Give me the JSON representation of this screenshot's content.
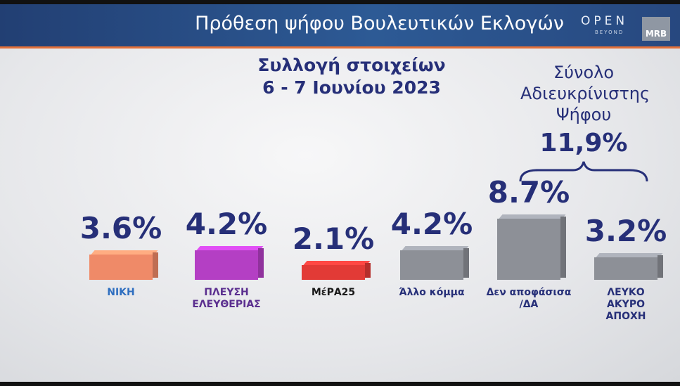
{
  "chart_data": {
    "type": "bar",
    "title": "Πρόθεση ψήφου Βουλευτικών Εκλογών",
    "subtitle": [
      "Συλλογή στοιχείων",
      "6 - 7 Ιουνίου 2023"
    ],
    "brand": [
      "OPEN",
      "BEYOND",
      "MRB"
    ],
    "annotation": {
      "text": "Σύνολο Αδιευκρίνιστης Ψήφου",
      "value": "11,9%"
    },
    "categories": [
      "ΝΙΚΗ",
      "ΠΛΕΥΣΗ ΕΛΕΥΘΕΡΙΑΣ",
      "ΜέΡΑ25",
      "Άλλο κόμμα",
      "Δεν αποφάσισα /ΔΑ",
      "ΛΕΥΚΟ ΑΚΥΡΟ ΑΠΟΧΗ"
    ],
    "values": [
      3.6,
      4.2,
      2.1,
      4.2,
      8.7,
      3.2
    ],
    "value_labels": [
      "3.6%",
      "4.2%",
      "2.1%",
      "4.2%",
      "8.7%",
      "3.2%"
    ],
    "colors": [
      "#ef8a68",
      "#b43fc4",
      "#e23a36",
      "#8d9097",
      "#8d9097",
      "#8d9097"
    ]
  }
}
